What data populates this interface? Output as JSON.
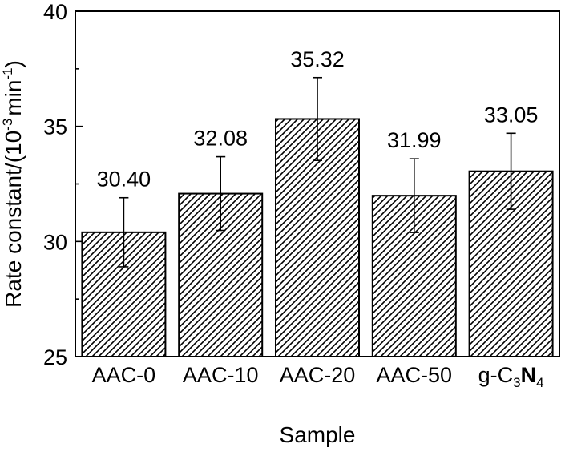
{
  "chart_data": {
    "type": "bar",
    "title": "",
    "xlabel": "Sample",
    "ylabel": {
      "prefix": "Rate constant/(10",
      "exp1": "-3",
      "mid": "min",
      "exp2": "-1",
      "suffix": ")"
    },
    "ylim": [
      25,
      40
    ],
    "yticks": [
      "25",
      "30",
      "35",
      "40"
    ],
    "categories": [
      {
        "base": "AAC-0"
      },
      {
        "base": "AAC-10"
      },
      {
        "base": "AAC-20"
      },
      {
        "base": "AAC-50"
      },
      {
        "base": "g-C",
        "sub1": "3",
        "mid": "N",
        "sub2": "4"
      }
    ],
    "values": [
      30.4,
      32.08,
      35.32,
      31.99,
      33.05
    ],
    "value_labels": [
      "30.40",
      "32.08",
      "35.32",
      "31.99",
      "33.05"
    ],
    "errors": [
      1.5,
      1.6,
      1.8,
      1.6,
      1.65
    ],
    "grid": false,
    "bar_fill": "hatched",
    "colors": {
      "bar_stroke": "#000000",
      "hatch": "#000000",
      "background": "#ffffff"
    }
  }
}
